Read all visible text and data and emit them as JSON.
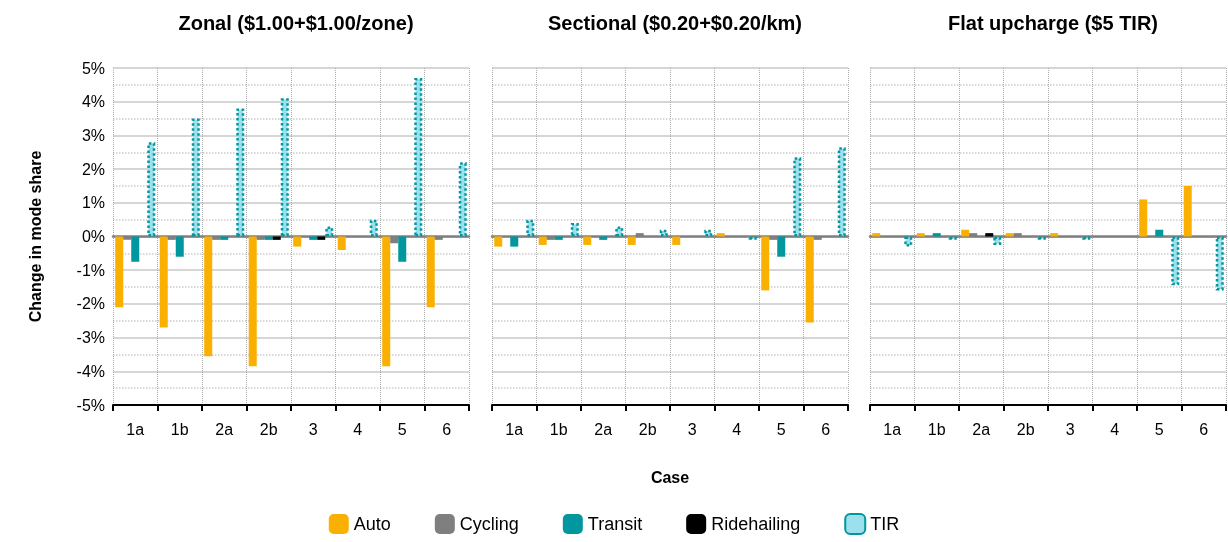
{
  "chart_data": [
    {
      "type": "bar",
      "title": "Zonal ($1.00+$1.00/zone)",
      "ylabel": "Change in mode share",
      "legend": "bottom",
      "categories": [
        "1a",
        "1b",
        "2a",
        "2b",
        "3",
        "4",
        "5",
        "6"
      ],
      "series": [
        {
          "name": "Auto",
          "color": "#f9b000",
          "values": [
            -2.1,
            -2.7,
            -3.55,
            -3.85,
            -0.3,
            -0.4,
            -3.85,
            -2.1
          ]
        },
        {
          "name": "Cycling",
          "color": "#7f7f7f",
          "values": [
            -0.1,
            -0.1,
            -0.1,
            -0.1,
            0,
            0,
            -0.2,
            -0.1
          ]
        },
        {
          "name": "Transit",
          "color": "#00979e",
          "values": [
            -0.75,
            -0.6,
            -0.1,
            -0.1,
            -0.1,
            0,
            -0.75,
            0
          ]
        },
        {
          "name": "Ridehailing",
          "color": "#000000",
          "values": [
            0,
            0,
            0,
            -0.1,
            -0.1,
            0,
            0,
            0
          ]
        },
        {
          "name": "TIR",
          "color": "#9be0ec",
          "line_style": "dotted",
          "values": [
            2.8,
            3.5,
            3.8,
            4.1,
            0.3,
            0.5,
            4.7,
            2.2
          ]
        }
      ],
      "ylim": [
        -5,
        5
      ],
      "yticks": [
        {
          "value": -5,
          "label": "-5%"
        },
        {
          "value": -4,
          "label": "-4%"
        },
        {
          "value": -3,
          "label": "-3%"
        },
        {
          "value": -2,
          "label": "-2%"
        },
        {
          "value": -1,
          "label": "-1%"
        },
        {
          "value": 0,
          "label": "0%"
        },
        {
          "value": 1,
          "label": "1%"
        },
        {
          "value": 2,
          "label": "2%"
        },
        {
          "value": 3,
          "label": "3%"
        },
        {
          "value": 4,
          "label": "4%"
        },
        {
          "value": 5,
          "label": "5%"
        }
      ],
      "grid": true
    },
    {
      "type": "bar",
      "title": "Sectional ($0.20+$0.20/km)",
      "xlabel": "Case",
      "tick_labels": "x",
      "categories": [
        "1a",
        "1b",
        "2a",
        "2b",
        "3",
        "4",
        "5",
        "6"
      ],
      "series": [
        {
          "name": "Auto",
          "color": "#f9b000",
          "values": [
            -0.3,
            -0.25,
            -0.25,
            -0.25,
            -0.25,
            0.1,
            -1.6,
            -2.55
          ]
        },
        {
          "name": "Cycling",
          "color": "#7f7f7f",
          "values": [
            0,
            -0.1,
            0,
            0.1,
            0,
            0,
            -0.1,
            -0.1
          ]
        },
        {
          "name": "Transit",
          "color": "#00979e",
          "values": [
            -0.3,
            -0.1,
            -0.1,
            0,
            0,
            0,
            -0.6,
            0
          ]
        },
        {
          "name": "Ridehailing",
          "color": "#000000",
          "values": [
            0,
            0,
            0,
            0,
            0,
            0,
            0,
            0
          ]
        },
        {
          "name": "TIR",
          "color": "#9be0ec",
          "line_style": "dotted",
          "values": [
            0.5,
            0.4,
            0.3,
            0.2,
            0.2,
            -0.1,
            2.35,
            2.65
          ]
        }
      ],
      "ylim": [
        -5,
        5
      ],
      "yticks": [
        -5,
        -4,
        -3,
        -2,
        -1,
        0,
        1,
        2,
        3,
        4,
        5
      ],
      "grid": true
    },
    {
      "type": "bar",
      "title": "Flat upcharge ($5 TIR)",
      "tick_labels": "x",
      "categories": [
        "1a",
        "1b",
        "2a",
        "2b",
        "3",
        "4",
        "5",
        "6"
      ],
      "series": [
        {
          "name": "Auto",
          "color": "#f9b000",
          "values": [
            0.1,
            0.1,
            0.2,
            0.1,
            0.1,
            null,
            1.1,
            1.5
          ]
        },
        {
          "name": "Cycling",
          "color": "#7f7f7f",
          "values": [
            0,
            0,
            0.1,
            0.1,
            0,
            null,
            0,
            0
          ]
        },
        {
          "name": "Transit",
          "color": "#00979e",
          "values": [
            0,
            0.1,
            0,
            0,
            0,
            null,
            0.2,
            0
          ]
        },
        {
          "name": "Ridehailing",
          "color": "#000000",
          "values": [
            0,
            0,
            0.1,
            0,
            0,
            null,
            0,
            0
          ]
        },
        {
          "name": "TIR",
          "color": "#9be0ec",
          "line_style": "dotted",
          "values": [
            -0.3,
            -0.1,
            -0.25,
            -0.1,
            -0.1,
            null,
            -1.45,
            -1.6
          ]
        }
      ],
      "ylim": [
        -5,
        5
      ],
      "yticks": [
        -5,
        -4,
        -3,
        -2,
        -1,
        0,
        1,
        2,
        3,
        4,
        5
      ],
      "grid": true
    }
  ]
}
